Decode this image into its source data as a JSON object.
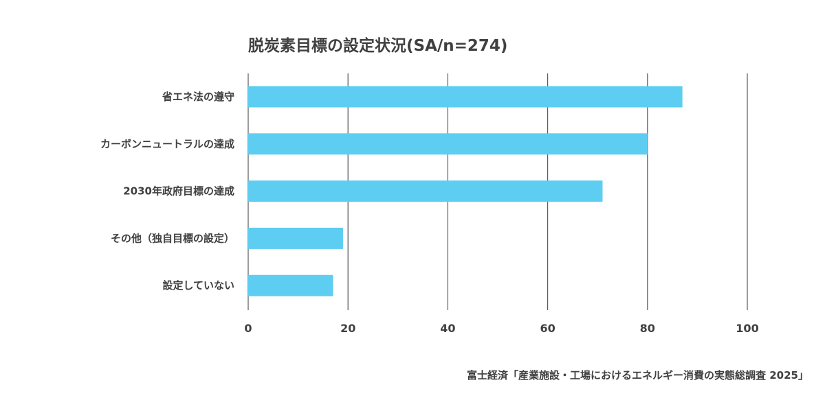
{
  "chart_data": {
    "type": "bar",
    "orientation": "horizontal",
    "title": "脱炭素目標の設定状況(SA/n=274)",
    "categories": [
      "省エネ法の遵守",
      "カーボンニュートラルの達成",
      "2030年政府目標の達成",
      "その他（独自目標の設定）",
      "設定していない"
    ],
    "values": [
      87,
      80,
      71,
      19,
      17
    ],
    "xlim": [
      0,
      100
    ],
    "xticks": [
      0,
      20,
      40,
      60,
      80,
      100
    ],
    "xlabel": "",
    "ylabel": "",
    "grid": "vertical",
    "legend": "none",
    "colors": {
      "bar": "#5ecdf2",
      "grid": "#595959",
      "text": "#404040"
    }
  },
  "source": "富士経済「産業施設・工場におけるエネルギー消費の実態総調査 2025」"
}
